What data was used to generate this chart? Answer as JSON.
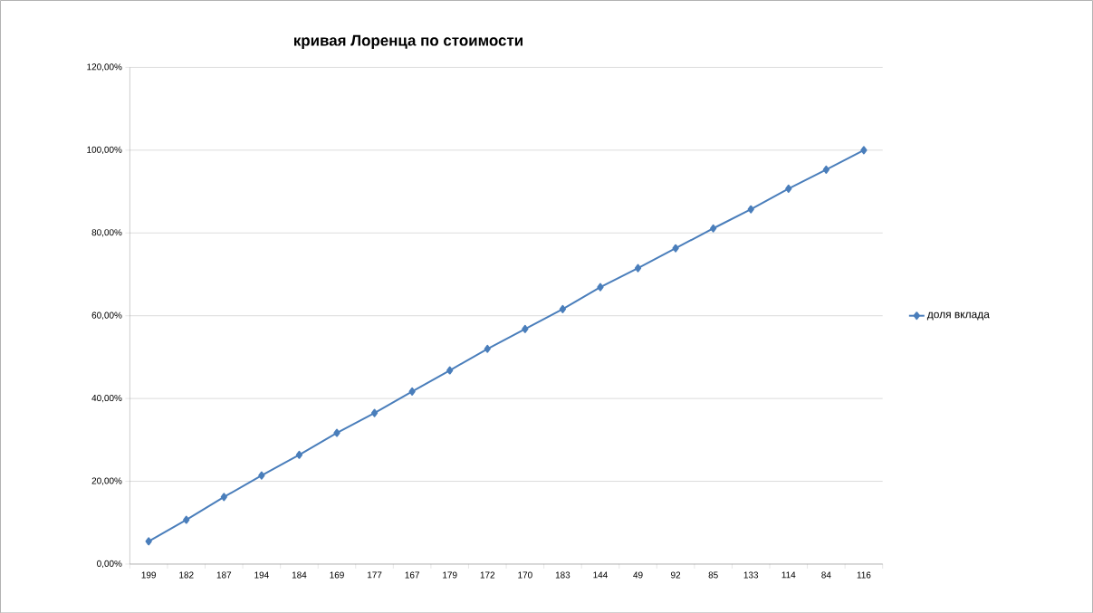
{
  "chart_data": {
    "type": "line",
    "title": "кривая Лоренца по стоимости",
    "categories": [
      "199",
      "182",
      "187",
      "194",
      "184",
      "169",
      "177",
      "167",
      "179",
      "172",
      "170",
      "183",
      "144",
      "49",
      "92",
      "85",
      "133",
      "114",
      "84",
      "116"
    ],
    "series": [
      {
        "name": "доля вклада",
        "color": "#4a7ebb",
        "values": [
          5.5,
          10.7,
          16.2,
          21.4,
          26.4,
          31.7,
          36.5,
          41.7,
          46.8,
          52.0,
          56.8,
          61.6,
          66.9,
          71.5,
          76.3,
          81.1,
          85.7,
          90.7,
          95.3,
          100
        ]
      }
    ],
    "ylim": [
      0,
      120
    ],
    "yticks": [
      {
        "value": 0,
        "label": "0,00%"
      },
      {
        "value": 20,
        "label": "20,00%"
      },
      {
        "value": 40,
        "label": "40,00%"
      },
      {
        "value": 60,
        "label": "60,00%"
      },
      {
        "value": 80,
        "label": "80,00%"
      },
      {
        "value": 100,
        "label": "100,00%"
      },
      {
        "value": 120,
        "label": "120,00%"
      }
    ],
    "grid": "y",
    "legend": "right",
    "marker": "diamond",
    "line_style": "solid"
  }
}
